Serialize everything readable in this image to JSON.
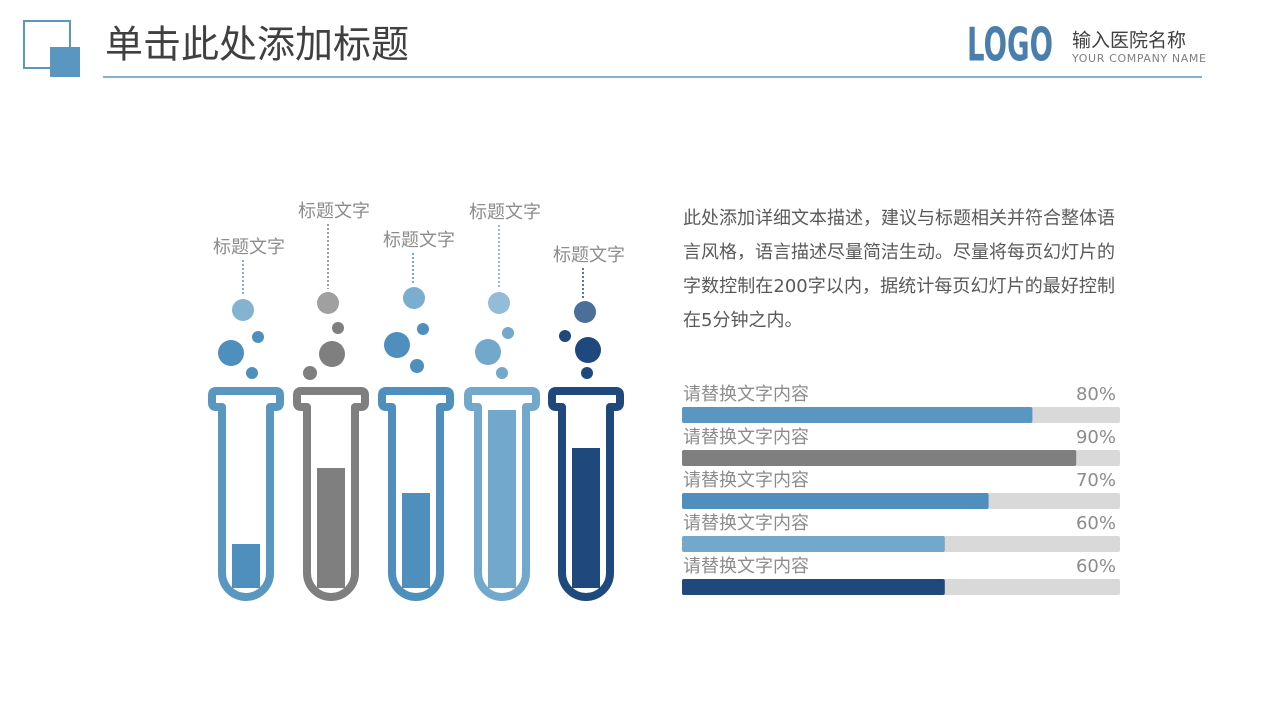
{
  "header": {
    "title": "单击此处添加标题",
    "logo": "LOGO",
    "hospital_name": "输入医院名称",
    "company_name": "YOUR COMPANY NAME"
  },
  "tubes": {
    "labels": [
      "标题文字",
      "标题文字",
      "标题文字",
      "标题文字",
      "标题文字"
    ]
  },
  "description": "此处添加详细文本描述，建议与标题相关并符合整体语言风格，语言描述尽量简洁生动。尽量将每页幻灯片的字数控制在200字以内，据统计每页幻灯片的最好控制在5分钟之内。",
  "progress": {
    "items": [
      {
        "label": "请替换文字内容",
        "value": 80,
        "value_label": "80%",
        "color": "#5a97c0"
      },
      {
        "label": "请替换文字内容",
        "value": 90,
        "value_label": "90%",
        "color": "#7f7f7f"
      },
      {
        "label": "请替换文字内容",
        "value": 70,
        "value_label": "70%",
        "color": "#4f8fbd"
      },
      {
        "label": "请替换文字内容",
        "value": 60,
        "value_label": "60%",
        "color": "#72a8cb"
      },
      {
        "label": "请替换文字内容",
        "value": 60,
        "value_label": "60%",
        "color": "#1f497d"
      }
    ]
  }
}
